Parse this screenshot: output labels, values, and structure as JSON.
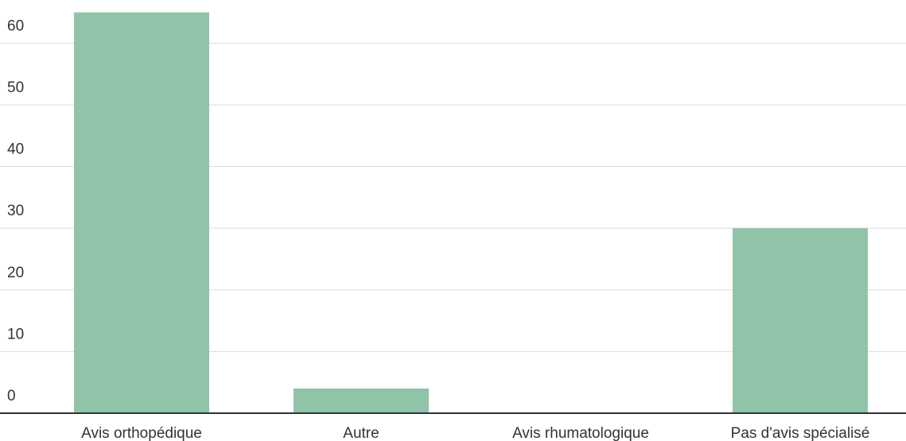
{
  "chart_data": {
    "type": "bar",
    "categories": [
      "Avis orthopédique",
      "Autre",
      "Avis rhumatologique",
      "Pas d'avis spécialisé"
    ],
    "values": [
      65,
      4,
      0,
      30
    ],
    "color": "#8fc4a8",
    "ylim": [
      0,
      67
    ],
    "yticks": [
      0,
      10,
      20,
      30,
      40,
      50,
      60
    ],
    "grid": true
  }
}
